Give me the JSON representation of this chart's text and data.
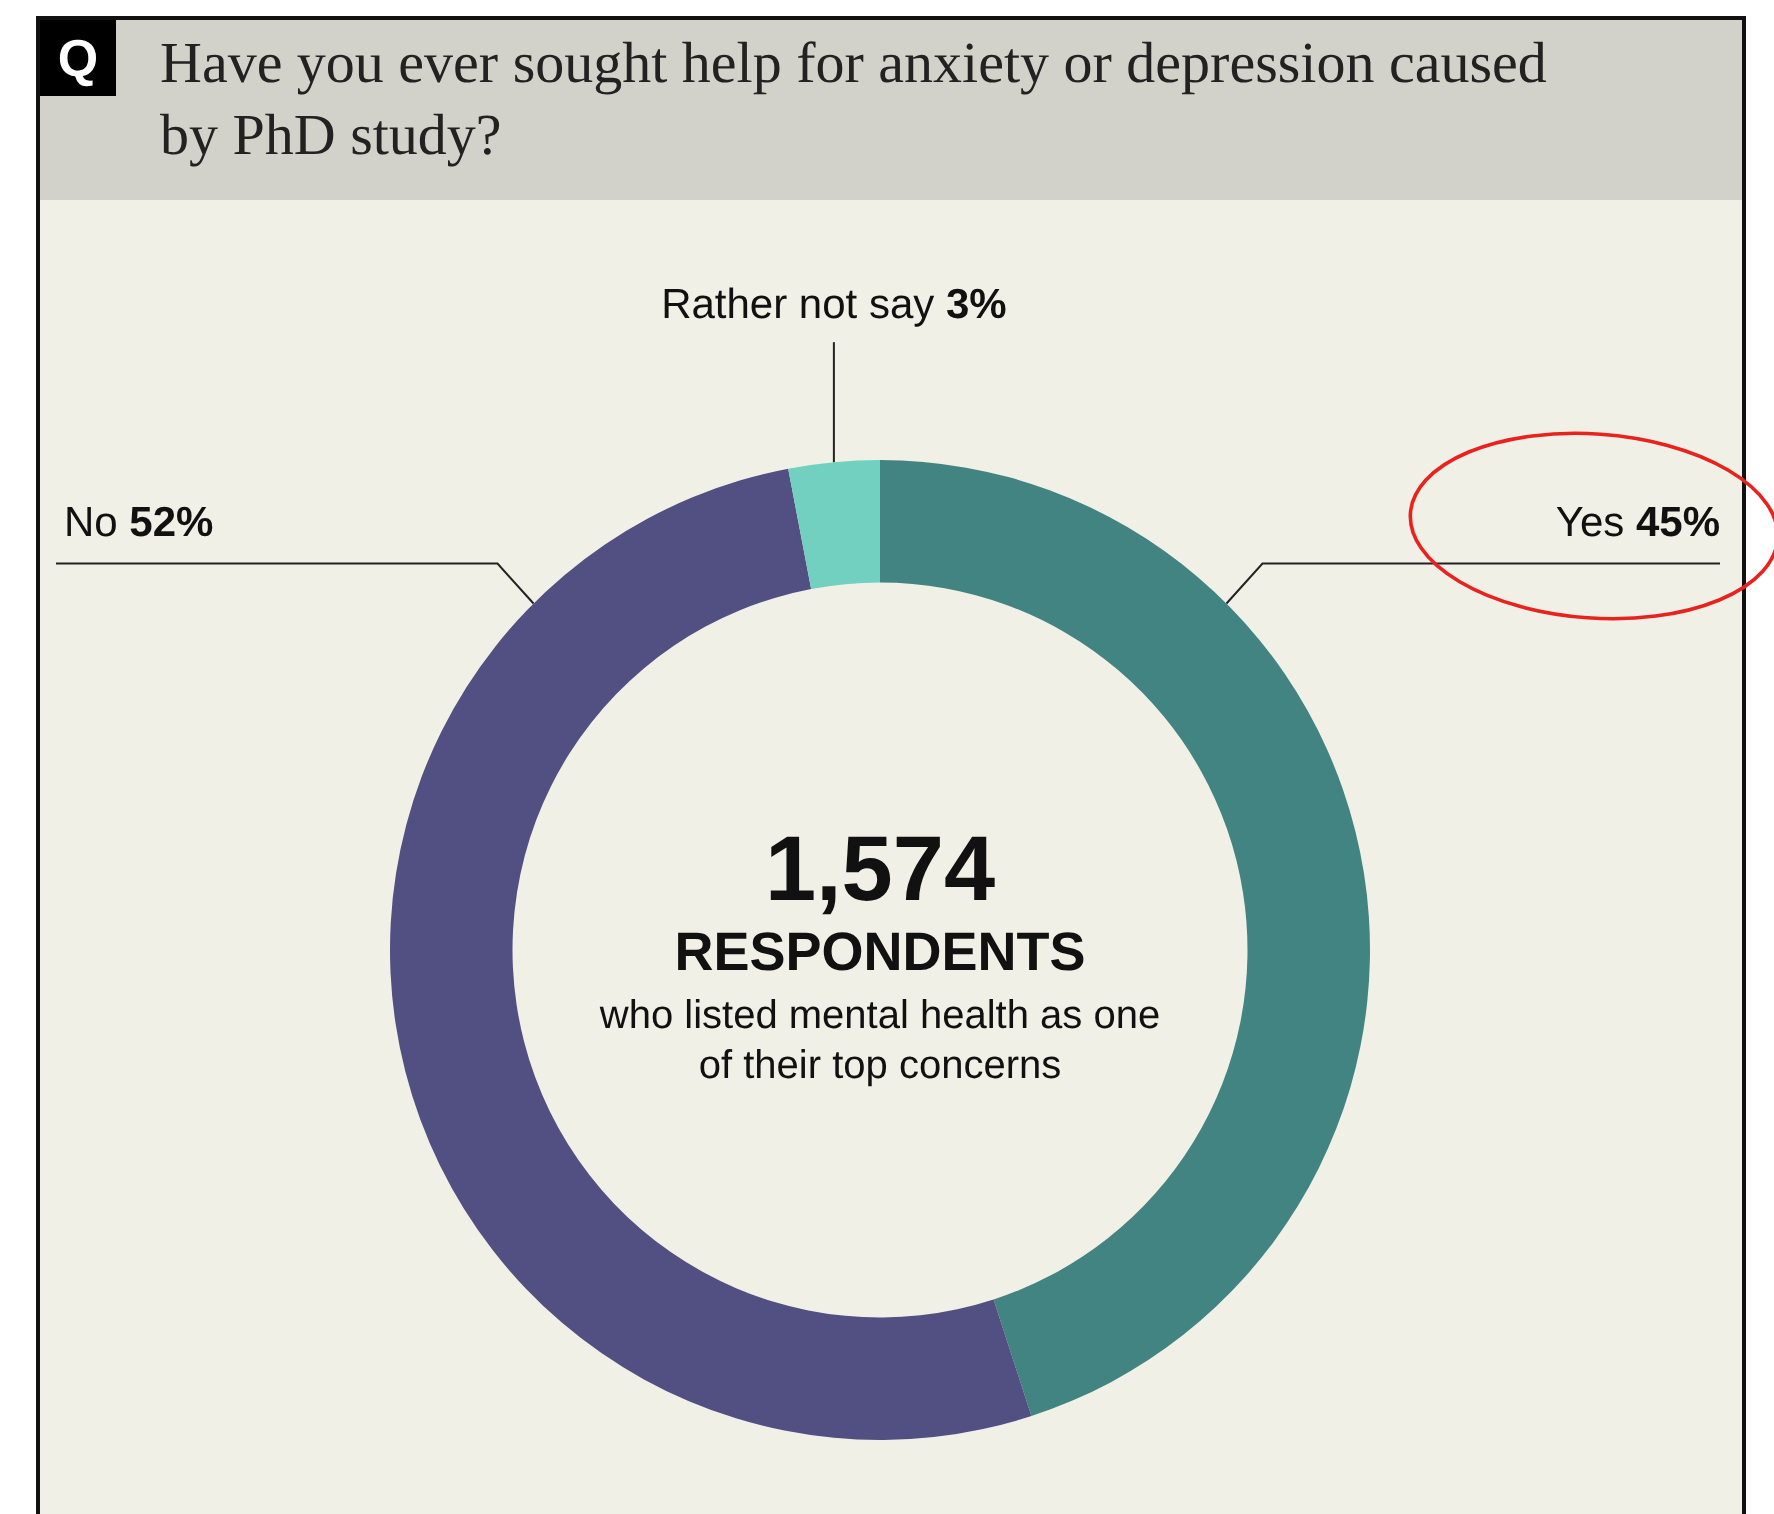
{
  "chart_data": {
    "type": "donut",
    "title": "Have you ever sought help for anxiety or depression caused by PhD study?",
    "categories": [
      "Yes",
      "No",
      "Rather not say"
    ],
    "values": [
      45,
      52,
      3
    ],
    "value_labels": [
      "45%",
      "52%",
      "3%"
    ],
    "colors": [
      "#428482",
      "#524f82",
      "#72d0c0"
    ],
    "annotations": [
      "Q",
      "1,574",
      "RESPONDENTS",
      "who listed mental health as one of their top concerns"
    ]
  }
}
